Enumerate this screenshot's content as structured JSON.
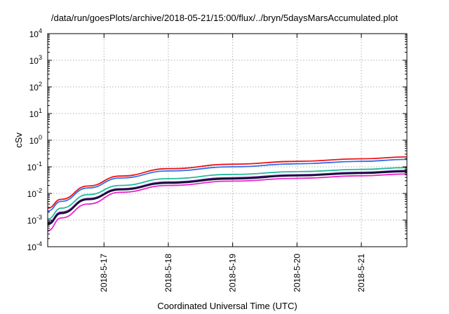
{
  "chart_data": {
    "type": "line",
    "title": "/data/run/goesPlots/archive/2018-05-21/15:00/flux/../bryn/5daysMarsAccumulated.plot",
    "xlabel": "Coordinated Universal Time (UTC)",
    "ylabel": "cSv",
    "y_scale": "log",
    "ylim": [
      0.0001,
      10000
    ],
    "y_ticks": [
      {
        "base": "10",
        "exp": "-4"
      },
      {
        "base": "10",
        "exp": "-3"
      },
      {
        "base": "10",
        "exp": "-2"
      },
      {
        "base": "10",
        "exp": "-1"
      },
      {
        "base": "10",
        "exp": "0"
      },
      {
        "base": "10",
        "exp": "1"
      },
      {
        "base": "10",
        "exp": "2"
      },
      {
        "base": "10",
        "exp": "3"
      },
      {
        "base": "10",
        "exp": "4"
      }
    ],
    "xlim": [
      "2018-05-16 03:00",
      "2018-05-21 17:00"
    ],
    "x_ticks": [
      "2018-5-17",
      "2018-5-18",
      "2018-5-19",
      "2018-5-20",
      "2018-5-21"
    ],
    "grid": true,
    "series": [
      {
        "color": "#ee1111",
        "x": [
          "2018-05-16 03:00",
          "2018-05-16 08:00",
          "2018-05-16 18:00",
          "2018-05-17 06:00",
          "2018-05-18 00:00",
          "2018-05-19 00:00",
          "2018-05-20 00:00",
          "2018-05-21 00:00",
          "2018-05-21 17:00"
        ],
        "y": [
          0.0028,
          0.006,
          0.019,
          0.045,
          0.085,
          0.125,
          0.16,
          0.2,
          0.235
        ]
      },
      {
        "color": "#2f6ff0",
        "x": [
          "2018-05-16 03:00",
          "2018-05-16 08:00",
          "2018-05-16 18:00",
          "2018-05-17 06:00",
          "2018-05-18 00:00",
          "2018-05-19 00:00",
          "2018-05-20 00:00",
          "2018-05-21 00:00",
          "2018-05-21 17:00"
        ],
        "y": [
          0.0022,
          0.005,
          0.016,
          0.038,
          0.07,
          0.1,
          0.13,
          0.16,
          0.19
        ]
      },
      {
        "color": "#22bb99",
        "x": [
          "2018-05-16 03:00",
          "2018-05-16 08:00",
          "2018-05-16 18:00",
          "2018-05-17 06:00",
          "2018-05-18 00:00",
          "2018-05-19 00:00",
          "2018-05-20 00:00",
          "2018-05-21 00:00",
          "2018-05-21 17:00"
        ],
        "y": [
          0.0011,
          0.0028,
          0.009,
          0.02,
          0.036,
          0.052,
          0.066,
          0.08,
          0.093
        ]
      },
      {
        "color": "#7722aa",
        "x": [
          "2018-05-16 03:00",
          "2018-05-16 08:00",
          "2018-05-16 18:00",
          "2018-05-17 06:00",
          "2018-05-18 00:00",
          "2018-05-19 00:00",
          "2018-05-20 00:00",
          "2018-05-21 00:00",
          "2018-05-21 17:00"
        ],
        "y": [
          0.0008,
          0.002,
          0.0065,
          0.015,
          0.027,
          0.039,
          0.05,
          0.062,
          0.073
        ]
      },
      {
        "color": "#111133",
        "x": [
          "2018-05-16 03:00",
          "2018-05-16 08:00",
          "2018-05-16 18:00",
          "2018-05-17 06:00",
          "2018-05-18 00:00",
          "2018-05-19 00:00",
          "2018-05-20 00:00",
          "2018-05-21 00:00",
          "2018-05-21 17:00"
        ],
        "y": [
          0.0007,
          0.0018,
          0.006,
          0.014,
          0.025,
          0.036,
          0.047,
          0.058,
          0.068
        ]
      },
      {
        "color": "#ee22cc",
        "x": [
          "2018-05-16 03:00",
          "2018-05-16 08:00",
          "2018-05-16 18:00",
          "2018-05-17 06:00",
          "2018-05-18 00:00",
          "2018-05-19 00:00",
          "2018-05-20 00:00",
          "2018-05-21 00:00",
          "2018-05-21 17:00"
        ],
        "y": [
          0.0004,
          0.0012,
          0.004,
          0.011,
          0.02,
          0.029,
          0.037,
          0.046,
          0.054
        ]
      }
    ]
  }
}
